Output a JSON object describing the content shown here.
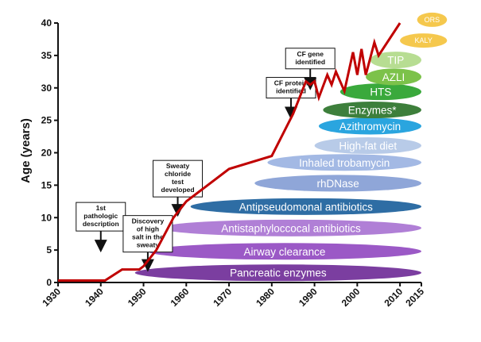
{
  "chart_data": {
    "type": "line",
    "title": "",
    "xlabel": "",
    "ylabel": "Age (years)",
    "xlim": [
      1930,
      2015
    ],
    "ylim": [
      0,
      40
    ],
    "x_ticks": [
      "1930",
      "1940",
      "1950",
      "1960",
      "1970",
      "1980",
      "1990",
      "2000",
      "2010",
      "2015"
    ],
    "y_ticks": [
      "0",
      "5",
      "10",
      "15",
      "20",
      "25",
      "30",
      "35",
      "40"
    ],
    "grid": false,
    "series": [
      {
        "color": "#c00000",
        "points": [
          [
            1930,
            0.3
          ],
          [
            1941,
            0.3
          ],
          [
            1945,
            2.0
          ],
          [
            1949,
            2.0
          ],
          [
            1950,
            2.5
          ],
          [
            1953,
            5.0
          ],
          [
            1957,
            10.0
          ],
          [
            1960,
            12.5
          ],
          [
            1970,
            17.5
          ],
          [
            1980,
            19.5
          ],
          [
            1985,
            26.0
          ],
          [
            1988,
            31.0
          ],
          [
            1989,
            30.5
          ],
          [
            1990,
            31.0
          ],
          [
            1991,
            28.5
          ],
          [
            1993,
            32.0
          ],
          [
            1994,
            30.5
          ],
          [
            1995,
            32.5
          ],
          [
            1997,
            29.5
          ],
          [
            1999,
            35.5
          ],
          [
            2000,
            32.0
          ],
          [
            2001,
            36.0
          ],
          [
            2002,
            32.0
          ],
          [
            2004,
            37.0
          ],
          [
            2005,
            35.0
          ],
          [
            2010,
            40.0
          ]
        ]
      }
    ],
    "annotations": [
      {
        "lines": [
          "1st",
          "pathologic",
          "description"
        ],
        "year": 1940,
        "arrow_tip": 5.0
      },
      {
        "lines": [
          "Discovery",
          "of high",
          "salt in the",
          "sweaty"
        ],
        "year": 1951,
        "arrow_tip": 2.0
      },
      {
        "lines": [
          "Sweaty",
          "chloride",
          "test",
          "developed"
        ],
        "year": 1958,
        "arrow_tip": 10.5
      },
      {
        "lines": [
          "CF protein",
          "identified"
        ],
        "year": 1984.5,
        "arrow_tip": 25.5
      },
      {
        "lines": [
          "CF gene",
          "identified"
        ],
        "year": 1989,
        "arrow_tip": 30.0
      }
    ],
    "therapies": [
      {
        "label": "Pancreatic enzymes",
        "start": 1948,
        "end": 2015,
        "y": 1.5,
        "color": "#7b3ea0"
      },
      {
        "label": "Airway clearance",
        "start": 1951,
        "end": 2015,
        "y": 4.8,
        "color": "#9b59c6"
      },
      {
        "label": "Antistaphyloccocal antibiotics",
        "start": 1954,
        "end": 2015,
        "y": 8.4,
        "color": "#b07fd6"
      },
      {
        "label": "Antipseudomonal antibiotics",
        "start": 1961,
        "end": 2015,
        "y": 11.7,
        "color": "#2e6da4"
      },
      {
        "label": "rhDNase",
        "start": 1976,
        "end": 2015,
        "y": 15.3,
        "color": "#8fa6d8"
      },
      {
        "label": "Inhaled trobamycin",
        "start": 1979,
        "end": 2015,
        "y": 18.5,
        "color": "#a3b9e4"
      },
      {
        "label": "High-fat diet",
        "start": 1990,
        "end": 2015,
        "y": 21.1,
        "color": "#b8cbe8"
      },
      {
        "label": "Azithromycin",
        "start": 1991,
        "end": 2015,
        "y": 24.1,
        "color": "#2aa5df"
      },
      {
        "label": "Enzymes*",
        "start": 1992,
        "end": 2015,
        "y": 26.6,
        "color": "#3d7f3b"
      },
      {
        "label": "HTS",
        "start": 1996,
        "end": 2015,
        "y": 29.4,
        "color": "#3aa93c"
      },
      {
        "label": "AZLI",
        "start": 2002,
        "end": 2015,
        "y": 31.7,
        "color": "#7cc24a"
      },
      {
        "label": "TIP",
        "start": 2003,
        "end": 2015,
        "y": 34.3,
        "color": "#b7dd92"
      },
      {
        "label": "KALY",
        "start": 2010,
        "end": 2021,
        "y": 37.3,
        "color": "#f5c84d"
      },
      {
        "label": "ORS",
        "start": 2014,
        "end": 2021,
        "y": 40.5,
        "color": "#f5c84d"
      }
    ]
  }
}
